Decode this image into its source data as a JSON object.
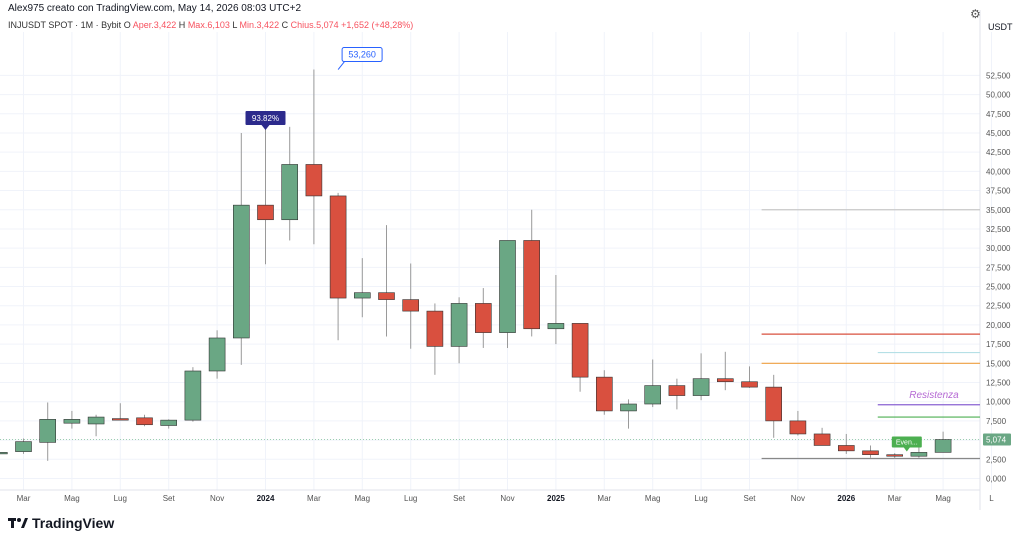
{
  "header": {
    "title": "Alex975 creato con TradingView.com, May 14, 2026 08:03 UTC+2",
    "gear_icon": "gear-icon"
  },
  "info": {
    "symbol": "INJUSDT SPOT · 1M · Bybit",
    "open_label": "O",
    "open_value": "Aper.3,422",
    "high_label": "H",
    "high_value": "Max.6,103",
    "low_label": "L",
    "low_value": "Min.3,422",
    "close_label": "C",
    "close_value": "Chius.5,074",
    "change": "+1,652 (+48,28%)"
  },
  "footer": {
    "brand": "TradingView",
    "logo_icon": "tradingview-logo-icon"
  },
  "chart_data": {
    "type": "candlestick",
    "currency_label": "USDT",
    "y_ticks": [
      "0,000",
      "2,500",
      "5,000",
      "7,500",
      "10,000",
      "12,500",
      "15,000",
      "17,500",
      "20,000",
      "22,500",
      "25,000",
      "27,500",
      "30,000",
      "32,500",
      "35,000",
      "37,500",
      "40,000",
      "42,500",
      "45,000",
      "47,500",
      "50,000",
      "52,500"
    ],
    "y_tick_values": [
      0,
      2.5,
      5,
      7.5,
      10,
      12.5,
      15,
      17.5,
      20,
      22.5,
      25,
      27.5,
      30,
      32.5,
      35,
      37.5,
      40,
      42.5,
      45,
      47.5,
      50,
      52.5
    ],
    "ylim": [
      -1.5,
      57.5
    ],
    "x_labels": [
      {
        "label": "Mar",
        "index": 0
      },
      {
        "label": "Mag",
        "index": 2
      },
      {
        "label": "Lug",
        "index": 4
      },
      {
        "label": "Set",
        "index": 6
      },
      {
        "label": "Nov",
        "index": 8
      },
      {
        "label": "2024",
        "index": 10,
        "bold": true
      },
      {
        "label": "Mar",
        "index": 12
      },
      {
        "label": "Mag",
        "index": 14
      },
      {
        "label": "Lug",
        "index": 16
      },
      {
        "label": "Set",
        "index": 18
      },
      {
        "label": "Nov",
        "index": 20
      },
      {
        "label": "2025",
        "index": 22,
        "bold": true
      },
      {
        "label": "Mar",
        "index": 24
      },
      {
        "label": "Mag",
        "index": 26
      },
      {
        "label": "Lug",
        "index": 28
      },
      {
        "label": "Set",
        "index": 30
      },
      {
        "label": "Nov",
        "index": 32
      },
      {
        "label": "2026",
        "index": 34,
        "bold": true
      },
      {
        "label": "Mar",
        "index": 36
      },
      {
        "label": "Mag",
        "index": 38
      },
      {
        "label": "L",
        "index": 40
      }
    ],
    "first_index": -1,
    "candles": [
      {
        "o": 3.3,
        "h": 3.7,
        "l": 2.9,
        "c": 3.4
      },
      {
        "o": 3.5,
        "h": 5.2,
        "l": 3.2,
        "c": 4.8
      },
      {
        "o": 4.7,
        "h": 9.9,
        "l": 2.3,
        "c": 7.7
      },
      {
        "o": 7.2,
        "h": 8.8,
        "l": 6.5,
        "c": 7.7
      },
      {
        "o": 7.1,
        "h": 8.3,
        "l": 5.5,
        "c": 8.0
      },
      {
        "o": 7.8,
        "h": 9.8,
        "l": 7.6,
        "c": 7.6
      },
      {
        "o": 7.9,
        "h": 8.3,
        "l": 6.8,
        "c": 7.0
      },
      {
        "o": 6.9,
        "h": 7.7,
        "l": 6.5,
        "c": 7.6
      },
      {
        "o": 7.6,
        "h": 14.5,
        "l": 7.4,
        "c": 14.0
      },
      {
        "o": 14.0,
        "h": 19.3,
        "l": 13.0,
        "c": 18.3
      },
      {
        "o": 18.3,
        "h": 45.0,
        "l": 14.8,
        "c": 35.6
      },
      {
        "o": 35.6,
        "h": 45.5,
        "l": 27.9,
        "c": 33.7
      },
      {
        "o": 33.7,
        "h": 45.8,
        "l": 31.0,
        "c": 40.9
      },
      {
        "o": 40.9,
        "h": 53.26,
        "l": 30.5,
        "c": 36.8
      },
      {
        "o": 36.8,
        "h": 37.2,
        "l": 18.0,
        "c": 23.5
      },
      {
        "o": 23.5,
        "h": 28.7,
        "l": 21.0,
        "c": 24.2
      },
      {
        "o": 24.2,
        "h": 33.0,
        "l": 18.5,
        "c": 23.3
      },
      {
        "o": 23.3,
        "h": 28.0,
        "l": 16.9,
        "c": 21.8
      },
      {
        "o": 21.8,
        "h": 22.8,
        "l": 13.5,
        "c": 17.2
      },
      {
        "o": 17.2,
        "h": 23.6,
        "l": 15.0,
        "c": 22.8
      },
      {
        "o": 22.8,
        "h": 24.8,
        "l": 17.0,
        "c": 19.0
      },
      {
        "o": 19.0,
        "h": 31.0,
        "l": 17.0,
        "c": 31.0
      },
      {
        "o": 31.0,
        "h": 35.0,
        "l": 18.5,
        "c": 19.5
      },
      {
        "o": 19.5,
        "h": 26.5,
        "l": 17.5,
        "c": 20.2
      },
      {
        "o": 20.2,
        "h": 20.2,
        "l": 11.3,
        "c": 13.2
      },
      {
        "o": 13.2,
        "h": 14.1,
        "l": 8.3,
        "c": 8.8
      },
      {
        "o": 8.8,
        "h": 10.3,
        "l": 6.5,
        "c": 9.7
      },
      {
        "o": 9.7,
        "h": 15.5,
        "l": 9.3,
        "c": 12.1
      },
      {
        "o": 12.1,
        "h": 13.0,
        "l": 9.0,
        "c": 10.8
      },
      {
        "o": 10.8,
        "h": 16.3,
        "l": 10.2,
        "c": 13.0
      },
      {
        "o": 13.0,
        "h": 16.5,
        "l": 11.5,
        "c": 12.6
      },
      {
        "o": 12.6,
        "h": 14.6,
        "l": 11.8,
        "c": 11.9
      },
      {
        "o": 11.9,
        "h": 13.5,
        "l": 5.3,
        "c": 7.5
      },
      {
        "o": 7.5,
        "h": 8.8,
        "l": 5.6,
        "c": 5.8
      },
      {
        "o": 5.8,
        "h": 6.6,
        "l": 4.3,
        "c": 4.3
      },
      {
        "o": 4.3,
        "h": 5.8,
        "l": 3.2,
        "c": 3.6
      },
      {
        "o": 3.6,
        "h": 4.3,
        "l": 2.7,
        "c": 3.1
      },
      {
        "o": 3.1,
        "h": 3.3,
        "l": 2.6,
        "c": 2.9
      },
      {
        "o": 2.9,
        "h": 4.3,
        "l": 2.7,
        "c": 3.4
      },
      {
        "o": 3.4,
        "h": 6.1,
        "l": 3.4,
        "c": 5.074
      }
    ],
    "up_color": "#6aa784",
    "down_color": "#d9503f",
    "wick_color": "#9a9a9a",
    "levels": [
      {
        "value": 35.0,
        "from_index": 30.5,
        "color": "#c8c8c8",
        "name": "level-35000"
      },
      {
        "value": 18.8,
        "from_index": 30.5,
        "color": "#d9503f",
        "name": "level-red"
      },
      {
        "value": 16.4,
        "from_index": 35.3,
        "color": "#b5e0e6",
        "name": "level-cyan"
      },
      {
        "value": 15.0,
        "from_index": 30.5,
        "color": "#f0a040",
        "name": "level-orange"
      },
      {
        "value": 9.6,
        "from_index": 35.3,
        "color": "#8a63d2",
        "name": "level-purple"
      },
      {
        "value": 8.0,
        "from_index": 35.3,
        "color": "#4caf50",
        "name": "level-green"
      },
      {
        "value": 2.6,
        "from_index": 30.5,
        "color": "#888888",
        "name": "level-low"
      }
    ],
    "resistance_label": "Resistenza",
    "resistance_color": "#b66ad4",
    "current_price": {
      "value": 5.074,
      "label": "5,074",
      "color": "#6aa784"
    },
    "peak_label": {
      "value": 53.26,
      "label": "53,260",
      "index": 13
    },
    "pct_label": {
      "label": "93.82%",
      "index": 10,
      "value": 45.0
    },
    "small_label": {
      "label": "Even...",
      "index": 36.5,
      "value": 3.0
    }
  }
}
